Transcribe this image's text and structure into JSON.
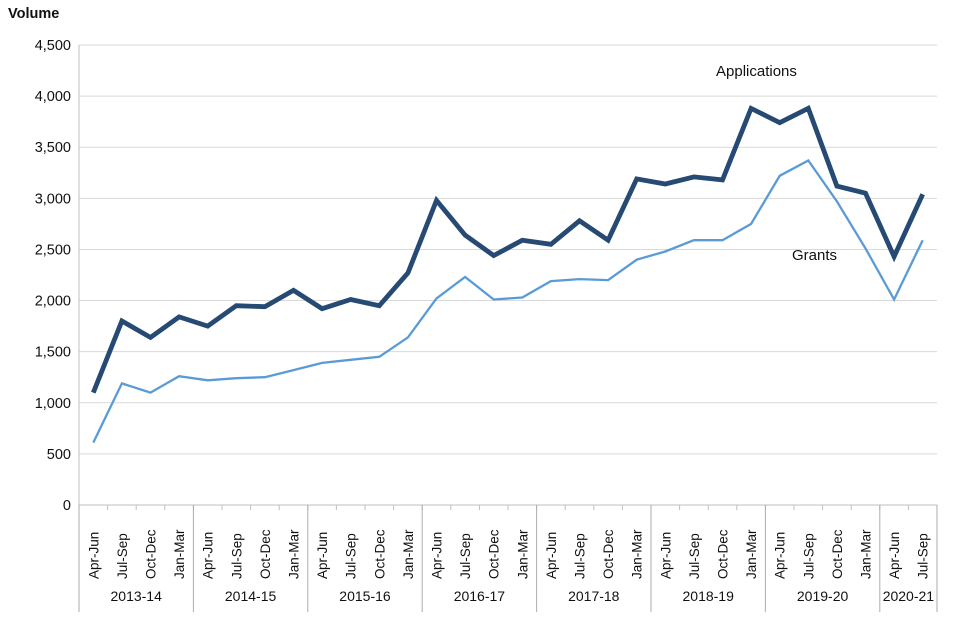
{
  "chart_data": {
    "type": "line",
    "title": "Volume",
    "grid": true,
    "legend_position": "inline-annotations",
    "y_axis": {
      "min": 0,
      "max": 4500,
      "step": 500,
      "tick_labels": [
        "0",
        "500",
        "1,000",
        "1,500",
        "2,000",
        "2,500",
        "3,000",
        "3,500",
        "4,000",
        "4,500"
      ]
    },
    "x_axis": {
      "years": [
        {
          "label": "2013-14",
          "quarters": [
            "Apr-Jun",
            "Jul-Sep",
            "Oct-Dec",
            "Jan-Mar"
          ]
        },
        {
          "label": "2014-15",
          "quarters": [
            "Apr-Jun",
            "Jul-Sep",
            "Oct-Dec",
            "Jan-Mar"
          ]
        },
        {
          "label": "2015-16",
          "quarters": [
            "Apr-Jun",
            "Jul-Sep",
            "Oct-Dec",
            "Jan-Mar"
          ]
        },
        {
          "label": "2016-17",
          "quarters": [
            "Apr-Jun",
            "Jul-Sep",
            "Oct-Dec",
            "Jan-Mar"
          ]
        },
        {
          "label": "2017-18",
          "quarters": [
            "Apr-Jun",
            "Jul-Sep",
            "Oct-Dec",
            "Jan-Mar"
          ]
        },
        {
          "label": "2018-19",
          "quarters": [
            "Apr-Jun",
            "Jul-Sep",
            "Oct-Dec",
            "Jan-Mar"
          ]
        },
        {
          "label": "2019-20",
          "quarters": [
            "Apr-Jun",
            "Jul-Sep",
            "Oct-Dec",
            "Jan-Mar"
          ]
        },
        {
          "label": "2020-21",
          "quarters": [
            "Apr-Jun",
            "Jul-Sep"
          ]
        }
      ]
    },
    "series": [
      {
        "name": "Applications",
        "color": "#264A73",
        "values": [
          1100,
          1800,
          1640,
          1840,
          1750,
          1950,
          1940,
          2100,
          1920,
          2010,
          1950,
          2270,
          2980,
          2640,
          2440,
          2590,
          2550,
          2780,
          2590,
          3190,
          3140,
          3210,
          3180,
          3880,
          3740,
          3880,
          3120,
          3050,
          2430,
          3040
        ]
      },
      {
        "name": "Grants",
        "color": "#5B9BD5",
        "values": [
          610,
          1190,
          1100,
          1260,
          1220,
          1240,
          1250,
          1320,
          1390,
          1420,
          1450,
          1640,
          2020,
          2230,
          2010,
          2030,
          2190,
          2210,
          2200,
          2400,
          2480,
          2590,
          2590,
          2750,
          3220,
          3370,
          2970,
          2510,
          2010,
          2590
        ]
      }
    ],
    "annotations": [
      {
        "text": "Applications",
        "x": 716,
        "y": 76
      },
      {
        "text": "Grants",
        "x": 792,
        "y": 260
      }
    ]
  }
}
